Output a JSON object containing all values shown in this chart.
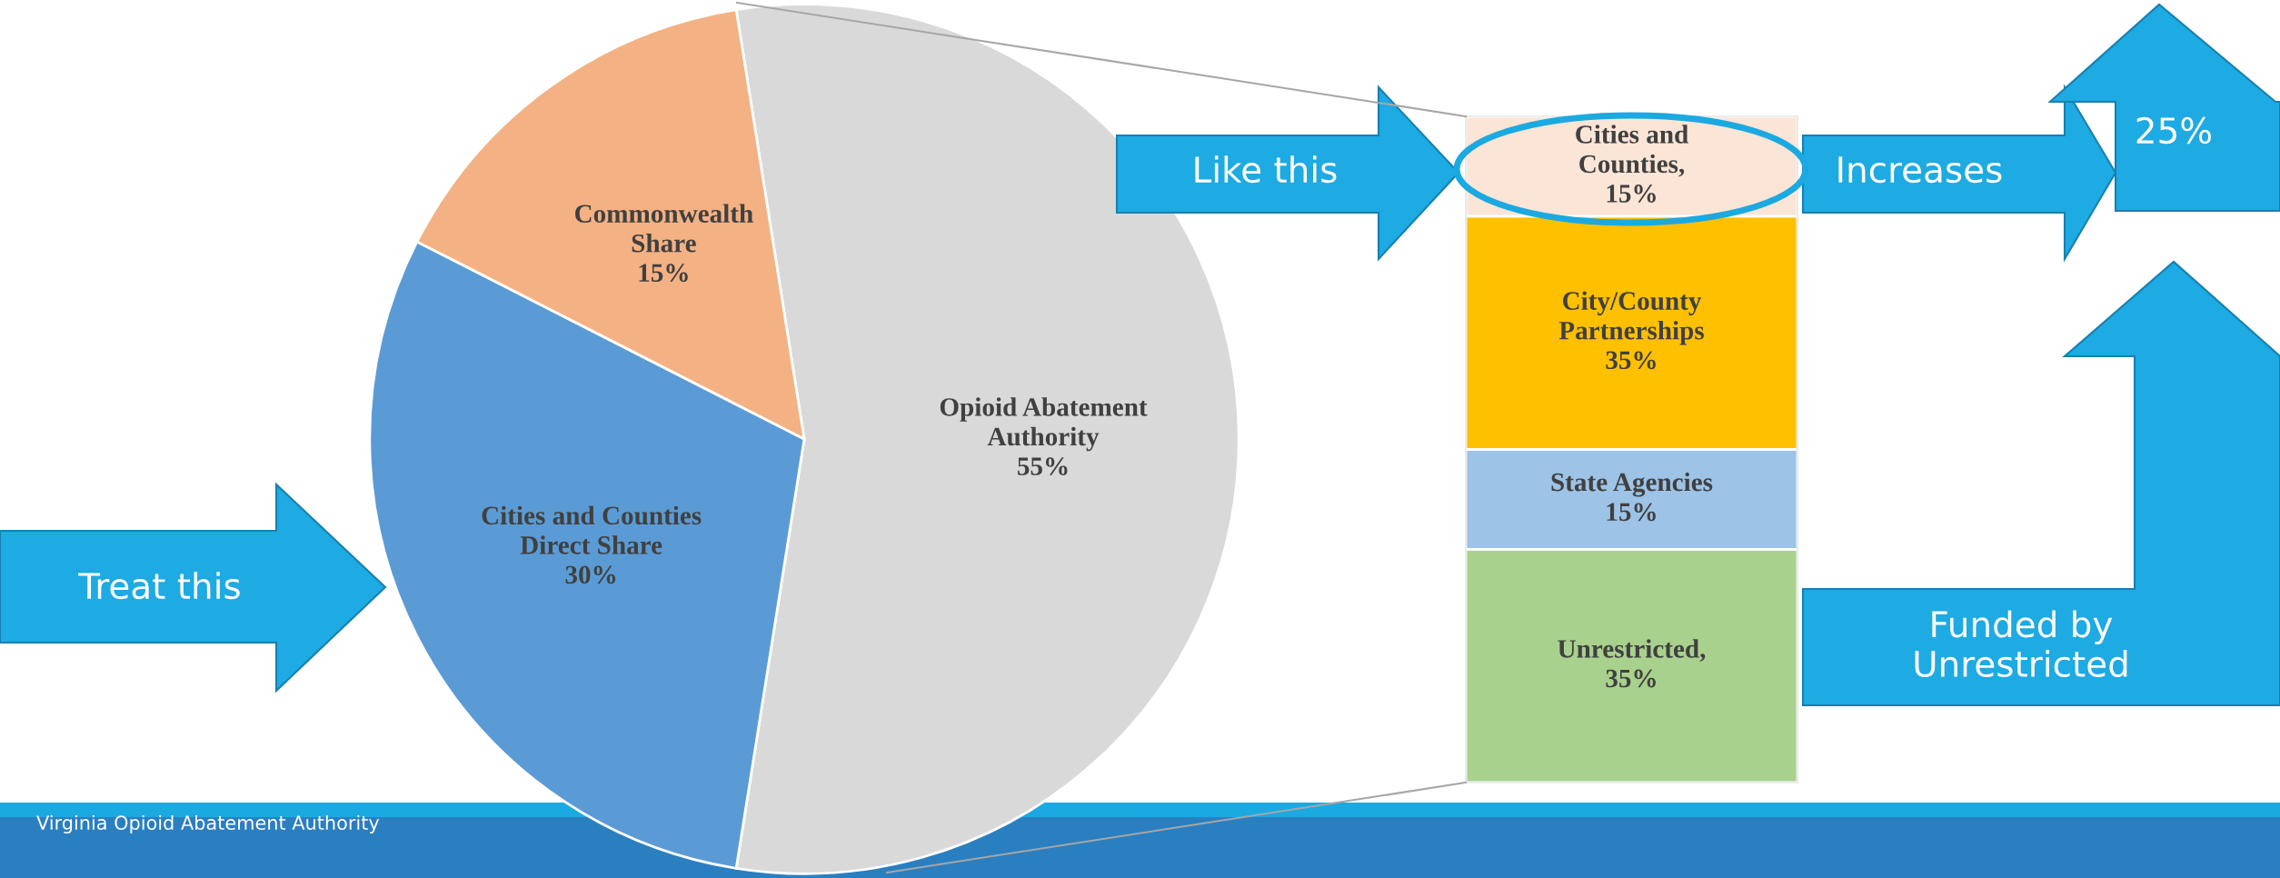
{
  "chart_data": [
    {
      "type": "pie",
      "categories": [
        "Opioid Abatement\nAuthority",
        "Cities and Counties\nDirect Share",
        "Commonwealth\nShare"
      ],
      "values": [
        55,
        30,
        15
      ],
      "value_labels": [
        "55%",
        "30%",
        "15%"
      ],
      "colors": [
        "#d9d9d9",
        "#5b9bd5",
        "#f4b183"
      ],
      "annotations": [
        "Treat this",
        "Like this",
        "Increases",
        "25%",
        "Funded by\nUnrestricted",
        "Virginia Opioid Abatement Authority"
      ],
      "legend": false
    },
    {
      "type": "bar",
      "stacked": true,
      "categories": [
        null
      ],
      "ylim": [
        0,
        100
      ],
      "tick_labels": false,
      "legend": false,
      "series": [
        {
          "name": "Unrestricted,",
          "color": "#a9d18e",
          "values": [
            35
          ],
          "value_labels": [
            "35%"
          ]
        },
        {
          "name": "State Agencies",
          "color": "#9dc3e6",
          "values": [
            15
          ],
          "value_labels": [
            "15%"
          ]
        },
        {
          "name": "City/County\nPartnerships",
          "color": "#ffc000",
          "values": [
            35
          ],
          "value_labels": [
            "35%"
          ]
        },
        {
          "name": "Cities and\nCounties,",
          "color": "#fbe5d6",
          "values": [
            15
          ],
          "value_labels": [
            "15%"
          ]
        }
      ]
    }
  ]
}
